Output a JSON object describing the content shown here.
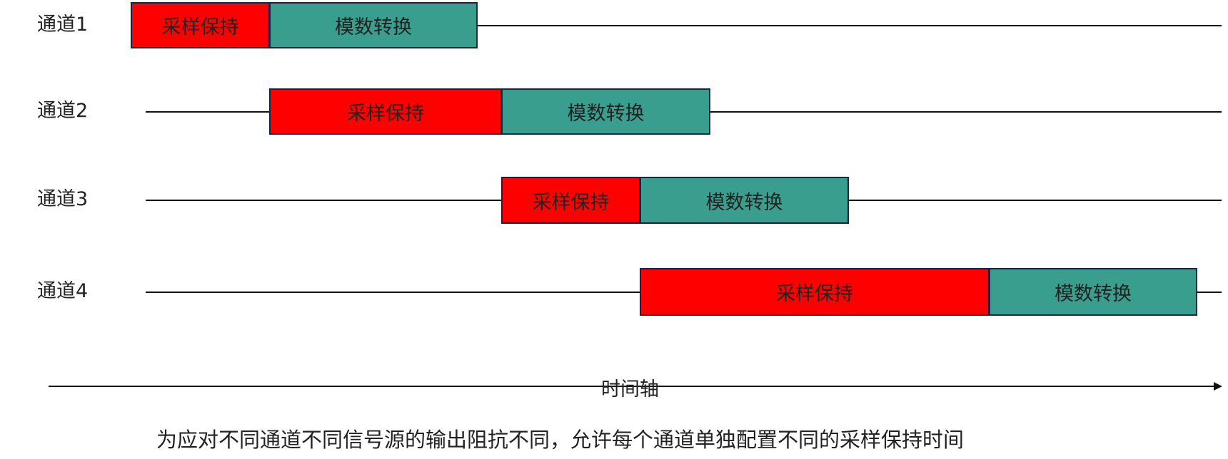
{
  "colors": {
    "sample_hold": "#ff0000",
    "adc": "#3a9e8e",
    "border": "#1b2345"
  },
  "channels": [
    {
      "label": "通道1",
      "sample_hold": "采样保持",
      "adc": "模数转换"
    },
    {
      "label": "通道2",
      "sample_hold": "采样保持",
      "adc": "模数转换"
    },
    {
      "label": "通道3",
      "sample_hold": "采样保持",
      "adc": "模数转换"
    },
    {
      "label": "通道4",
      "sample_hold": "采样保持",
      "adc": "模数转换"
    }
  ],
  "axis_label": "时间轴",
  "caption": "为应对不同通道不同信号源的输出阻抗不同，允许每个通道单独配置不同的采样保持时间"
}
